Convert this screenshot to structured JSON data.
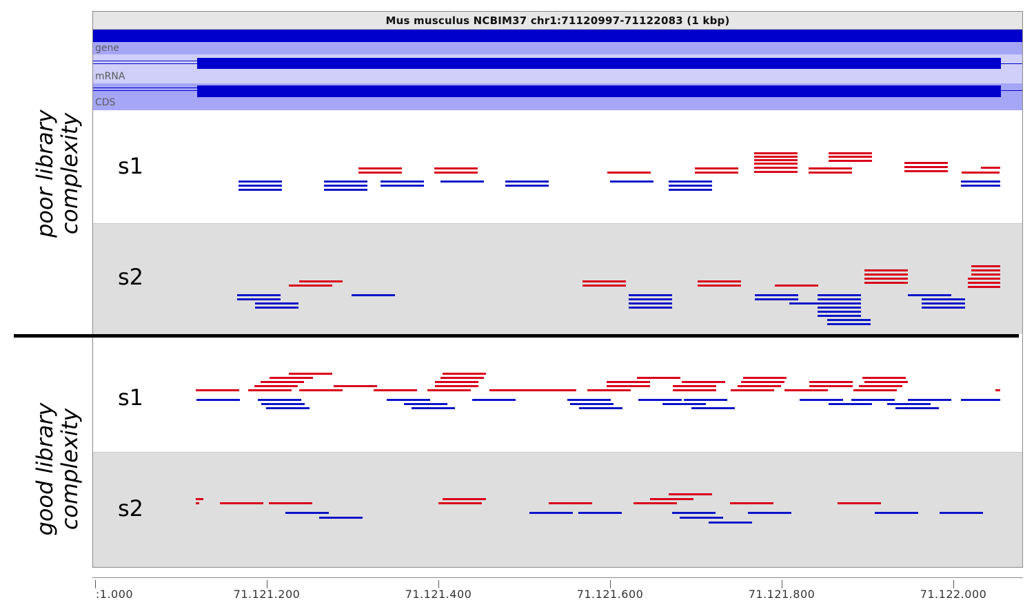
{
  "title": "Mus musculus NCBIM37 chr1:71120997-71122083 (1 kbp)",
  "annotation_tracks": [
    {
      "name": "gene"
    },
    {
      "name": "mRNA"
    },
    {
      "name": "CDS"
    }
  ],
  "groups": [
    {
      "label": "poor library\ncomplexity"
    },
    {
      "label": "good library\ncomplexity"
    }
  ],
  "samples": [
    {
      "label": "s1",
      "group": "poor"
    },
    {
      "label": "s2",
      "group": "poor"
    },
    {
      "label": "s1",
      "group": "good"
    },
    {
      "label": "s2",
      "group": "good"
    }
  ],
  "axis": {
    "ticks": [
      ":1.000",
      "71.121.200",
      "71.121.400",
      "71.121.600",
      "71.121.800",
      "71.122.000"
    ]
  },
  "colors": {
    "plus_strand": "#d9001b",
    "minus_strand": "#0a14c8",
    "feature": "#0000cc",
    "panel_alt": "#dedede"
  }
}
